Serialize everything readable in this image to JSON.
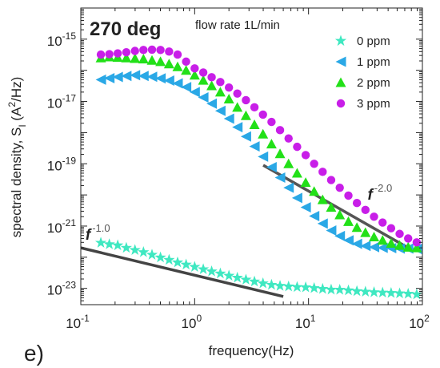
{
  "chart_data": {
    "type": "scatter",
    "panel_label": "e)",
    "title": "270 deg",
    "subtitle": "flow rate 1L/min",
    "xlabel": "frequency(Hz)",
    "ylabel_main": "spectral density, S",
    "ylabel_sub": "I",
    "ylabel_unit": " (A",
    "ylabel_unit_sup": "2",
    "ylabel_unit_end": "/Hz)",
    "xscale": "log",
    "yscale": "log",
    "xlim": [
      0.1,
      100
    ],
    "ylim": [
      3e-24,
      1e-14
    ],
    "grid": false,
    "legend_position": "top-right",
    "x_ticks": [
      {
        "value": 0.1,
        "base": "10",
        "exp": "-1"
      },
      {
        "value": 1,
        "base": "10",
        "exp": "0"
      },
      {
        "value": 10,
        "base": "10",
        "exp": "1"
      },
      {
        "value": 100,
        "base": "10",
        "exp": "2"
      }
    ],
    "y_ticks": [
      {
        "value": 1e-23,
        "base": "10",
        "exp": "-23"
      },
      {
        "value": 1e-21,
        "base": "10",
        "exp": "-21"
      },
      {
        "value": 1e-19,
        "base": "10",
        "exp": "-19"
      },
      {
        "value": 1e-17,
        "base": "10",
        "exp": "-17"
      },
      {
        "value": 1e-15,
        "base": "10",
        "exp": "-15"
      }
    ],
    "x": [
      0.15,
      0.178,
      0.211,
      0.251,
      0.299,
      0.355,
      0.422,
      0.501,
      0.596,
      0.708,
      0.841,
      1.0,
      1.19,
      1.41,
      1.68,
      2.0,
      2.37,
      2.82,
      3.35,
      3.98,
      4.73,
      5.62,
      6.68,
      7.94,
      9.44,
      11.2,
      13.3,
      15.8,
      18.8,
      22.4,
      26.6,
      31.6,
      37.6,
      44.7,
      53.1,
      63.1,
      75.0,
      89.1
    ],
    "series": [
      {
        "name": "0 ppm",
        "marker": "star",
        "color": "#3fe8c1",
        "values": [
          2.9e-22,
          2.6e-22,
          2.4e-22,
          2e-22,
          1.7e-22,
          1.45e-22,
          1.2e-22,
          9.8e-23,
          8.2e-23,
          6.8e-23,
          5.8e-23,
          4.9e-23,
          4.1e-23,
          3.5e-23,
          3e-23,
          2.55e-23,
          2.2e-23,
          1.9e-23,
          1.65e-23,
          1.45e-23,
          1.3e-23,
          1.2e-23,
          1.15e-23,
          1.1e-23,
          1.08e-23,
          1.02e-23,
          9.6e-24,
          9.1e-24,
          9e-24,
          8.6e-24,
          8.1e-24,
          7.8e-24,
          7.5e-24,
          7.3e-24,
          7.1e-24,
          6.9e-24,
          6.7e-24,
          6.4e-24
        ]
      },
      {
        "name": "1 ppm",
        "marker": "triangle-left",
        "color": "#2aa8e6",
        "values": [
          5e-17,
          5.6e-17,
          6.1e-17,
          6.6e-17,
          7e-17,
          6.6e-17,
          6.2e-17,
          5.5e-17,
          4.7e-17,
          3.8e-17,
          2.9e-17,
          2e-17,
          1.35e-17,
          8.5e-18,
          5e-18,
          2.8e-18,
          1.5e-18,
          7.5e-19,
          3.6e-19,
          1.7e-19,
          7.8e-20,
          3.6e-20,
          1.7e-20,
          8e-21,
          4e-21,
          2.1e-21,
          1.2e-21,
          7.2e-22,
          4.8e-22,
          3.5e-22,
          2.7e-22,
          2.3e-22,
          2.1e-22,
          2e-22,
          1.95e-22,
          1.9e-22,
          1.9e-22,
          1.85e-22
        ]
      },
      {
        "name": "2 ppm",
        "marker": "triangle-up",
        "color": "#22e018",
        "values": [
          2.5e-16,
          2.7e-16,
          2.6e-16,
          2.5e-16,
          2.4e-16,
          2.3e-16,
          2.1e-16,
          1.9e-16,
          1.6e-16,
          1.3e-16,
          1e-16,
          7e-17,
          4.8e-17,
          3.2e-17,
          2e-17,
          1.2e-17,
          6.5e-18,
          3.5e-18,
          1.8e-18,
          9e-19,
          4.3e-19,
          2.1e-19,
          1e-19,
          5e-20,
          2.5e-20,
          1.3e-20,
          7e-21,
          4e-21,
          2.3e-21,
          1.4e-21,
          9e-22,
          6.2e-22,
          4.5e-22,
          3.5e-22,
          2.8e-22,
          2.4e-22,
          2.1e-22,
          2e-22
        ]
      },
      {
        "name": "3 ppm",
        "marker": "circle",
        "color": "#c81ee8",
        "values": [
          3.2e-16,
          3.3e-16,
          3.5e-16,
          3.8e-16,
          4.2e-16,
          4.5e-16,
          4.6e-16,
          4.5e-16,
          4e-16,
          3.2e-16,
          1.9e-16,
          1.15e-16,
          8.5e-17,
          6e-17,
          4.2e-17,
          2.8e-17,
          1.8e-17,
          1.1e-17,
          6.5e-18,
          3.8e-18,
          2.2e-18,
          1.2e-18,
          6.5e-19,
          3.5e-19,
          1.9e-19,
          1e-19,
          5.5e-20,
          3e-20,
          1.7e-20,
          9.5e-21,
          5.5e-21,
          3.3e-21,
          2e-21,
          1.3e-21,
          8.5e-22,
          5.6e-22,
          4e-22,
          3e-22
        ]
      }
    ],
    "fit_lines": [
      {
        "label_base": "f",
        "label_exp": "-1.0",
        "x": [
          0.1,
          6.0
        ],
        "y": [
          2e-22,
          5.5e-24
        ],
        "color": "#444444",
        "label_x": 0.11,
        "label_y": 3.6e-22
      },
      {
        "label_base": "f",
        "label_exp": "-2.0",
        "x": [
          4.0,
          75.0
        ],
        "y": [
          9e-20,
          2e-22
        ],
        "color": "#555555",
        "label_x": 33.0,
        "label_y": 7e-21
      }
    ]
  }
}
